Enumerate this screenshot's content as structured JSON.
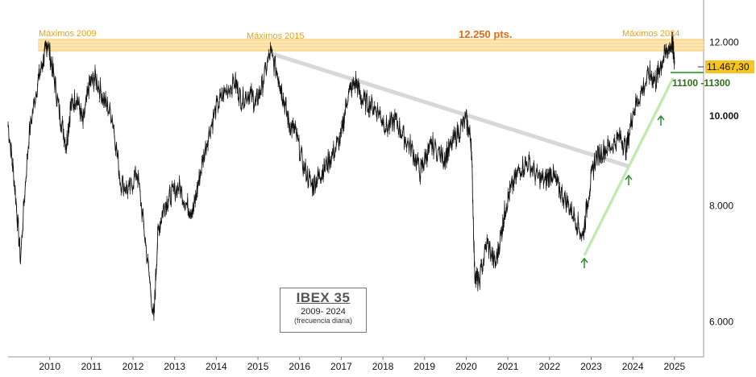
{
  "chart_data": {
    "type": "line",
    "title": "IBEX 35",
    "subtitle": "2009- 2024",
    "note": "(frecuencia diaria)",
    "x_ticks": [
      "2010",
      "2011",
      "2012",
      "2013",
      "2014",
      "2015",
      "2016",
      "2017",
      "2018",
      "2019",
      "2020",
      "2021",
      "2022",
      "2023",
      "2024",
      "2025"
    ],
    "y_ticks": [
      "6.000",
      "8.000",
      "10.000",
      "12.000"
    ],
    "y_tick_values": [
      6000,
      8000,
      10000,
      12000
    ],
    "ylim": [
      5500,
      13200
    ],
    "xlim": [
      2009.0,
      2025.7
    ],
    "scale": "log",
    "series": [
      {
        "values_x": [
          2009.0,
          2009.15,
          2009.3,
          2009.5,
          2009.7,
          2009.85,
          2009.95,
          2010.1,
          2010.25,
          2010.4,
          2010.5,
          2010.65,
          2010.8,
          2010.95,
          2011.1,
          2011.3,
          2011.5,
          2011.7,
          2011.9,
          2012.1,
          2012.3,
          2012.5,
          2012.6,
          2012.75,
          2012.9,
          2013.1,
          2013.3,
          2013.45,
          2013.6,
          2013.8,
          2014.0,
          2014.2,
          2014.45,
          2014.6,
          2014.8,
          2014.95,
          2015.1,
          2015.3,
          2015.5,
          2015.6,
          2015.75,
          2015.9,
          2016.1,
          2016.3,
          2016.45,
          2016.6,
          2016.8,
          2017.0,
          2017.15,
          2017.35,
          2017.5,
          2017.7,
          2017.9,
          2018.1,
          2018.3,
          2018.5,
          2018.7,
          2018.9,
          2019.05,
          2019.2,
          2019.45,
          2019.6,
          2019.8,
          2020.0,
          2020.12,
          2020.2,
          2020.3,
          2020.5,
          2020.7,
          2020.85,
          2020.95,
          2021.1,
          2021.3,
          2021.5,
          2021.7,
          2021.9,
          2022.05,
          2022.2,
          2022.4,
          2022.6,
          2022.8,
          2022.95,
          2023.1,
          2023.3,
          2023.5,
          2023.7,
          2023.85,
          2024.0,
          2024.2,
          2024.4,
          2024.55,
          2024.65,
          2024.8,
          2024.95,
          2025.0
        ],
        "values_y": [
          9800,
          8500,
          7000,
          9500,
          10800,
          11500,
          12000,
          11000,
          10000,
          9300,
          10200,
          10500,
          9800,
          10800,
          11000,
          10400,
          10000,
          8500,
          8300,
          8700,
          7300,
          6000,
          7500,
          8000,
          8200,
          8400,
          8000,
          7900,
          8600,
          9500,
          10200,
          10600,
          10900,
          10400,
          10600,
          10300,
          10800,
          11700,
          11000,
          10500,
          9800,
          9600,
          8800,
          8400,
          8600,
          8800,
          9100,
          9500,
          10500,
          10900,
          10400,
          10300,
          10100,
          9700,
          9900,
          9500,
          9200,
          8700,
          9100,
          9300,
          9000,
          9200,
          9600,
          9900,
          9400,
          6800,
          6600,
          7300,
          6900,
          7500,
          8000,
          8400,
          8800,
          8900,
          8600,
          8500,
          8700,
          8400,
          8100,
          7800,
          7400,
          8300,
          9000,
          9200,
          9300,
          9500,
          9200,
          10100,
          10600,
          11100,
          10900,
          11300,
          11700,
          12000,
          11467
        ]
      }
    ],
    "annotations": {
      "max_2009": "Máximos 2009",
      "max_2015": "Máximos 2015",
      "max_2024": "Máximos 2024",
      "level": "12.250 pts.",
      "last_price": "11.467,30",
      "support": "11100 -11300"
    },
    "colors": {
      "price_line": "#111111",
      "resistance_band": "#f9d27a",
      "resistance_text": "#e8a21a",
      "level_text": "#e26b10",
      "trendline_down": "#d8d8d8",
      "trendline_up": "#bde8b0",
      "arrow": "#2e8b2e",
      "support_line": "#4caf50",
      "support_text": "#2f6d1a",
      "price_tag": "#f7c41b"
    }
  }
}
